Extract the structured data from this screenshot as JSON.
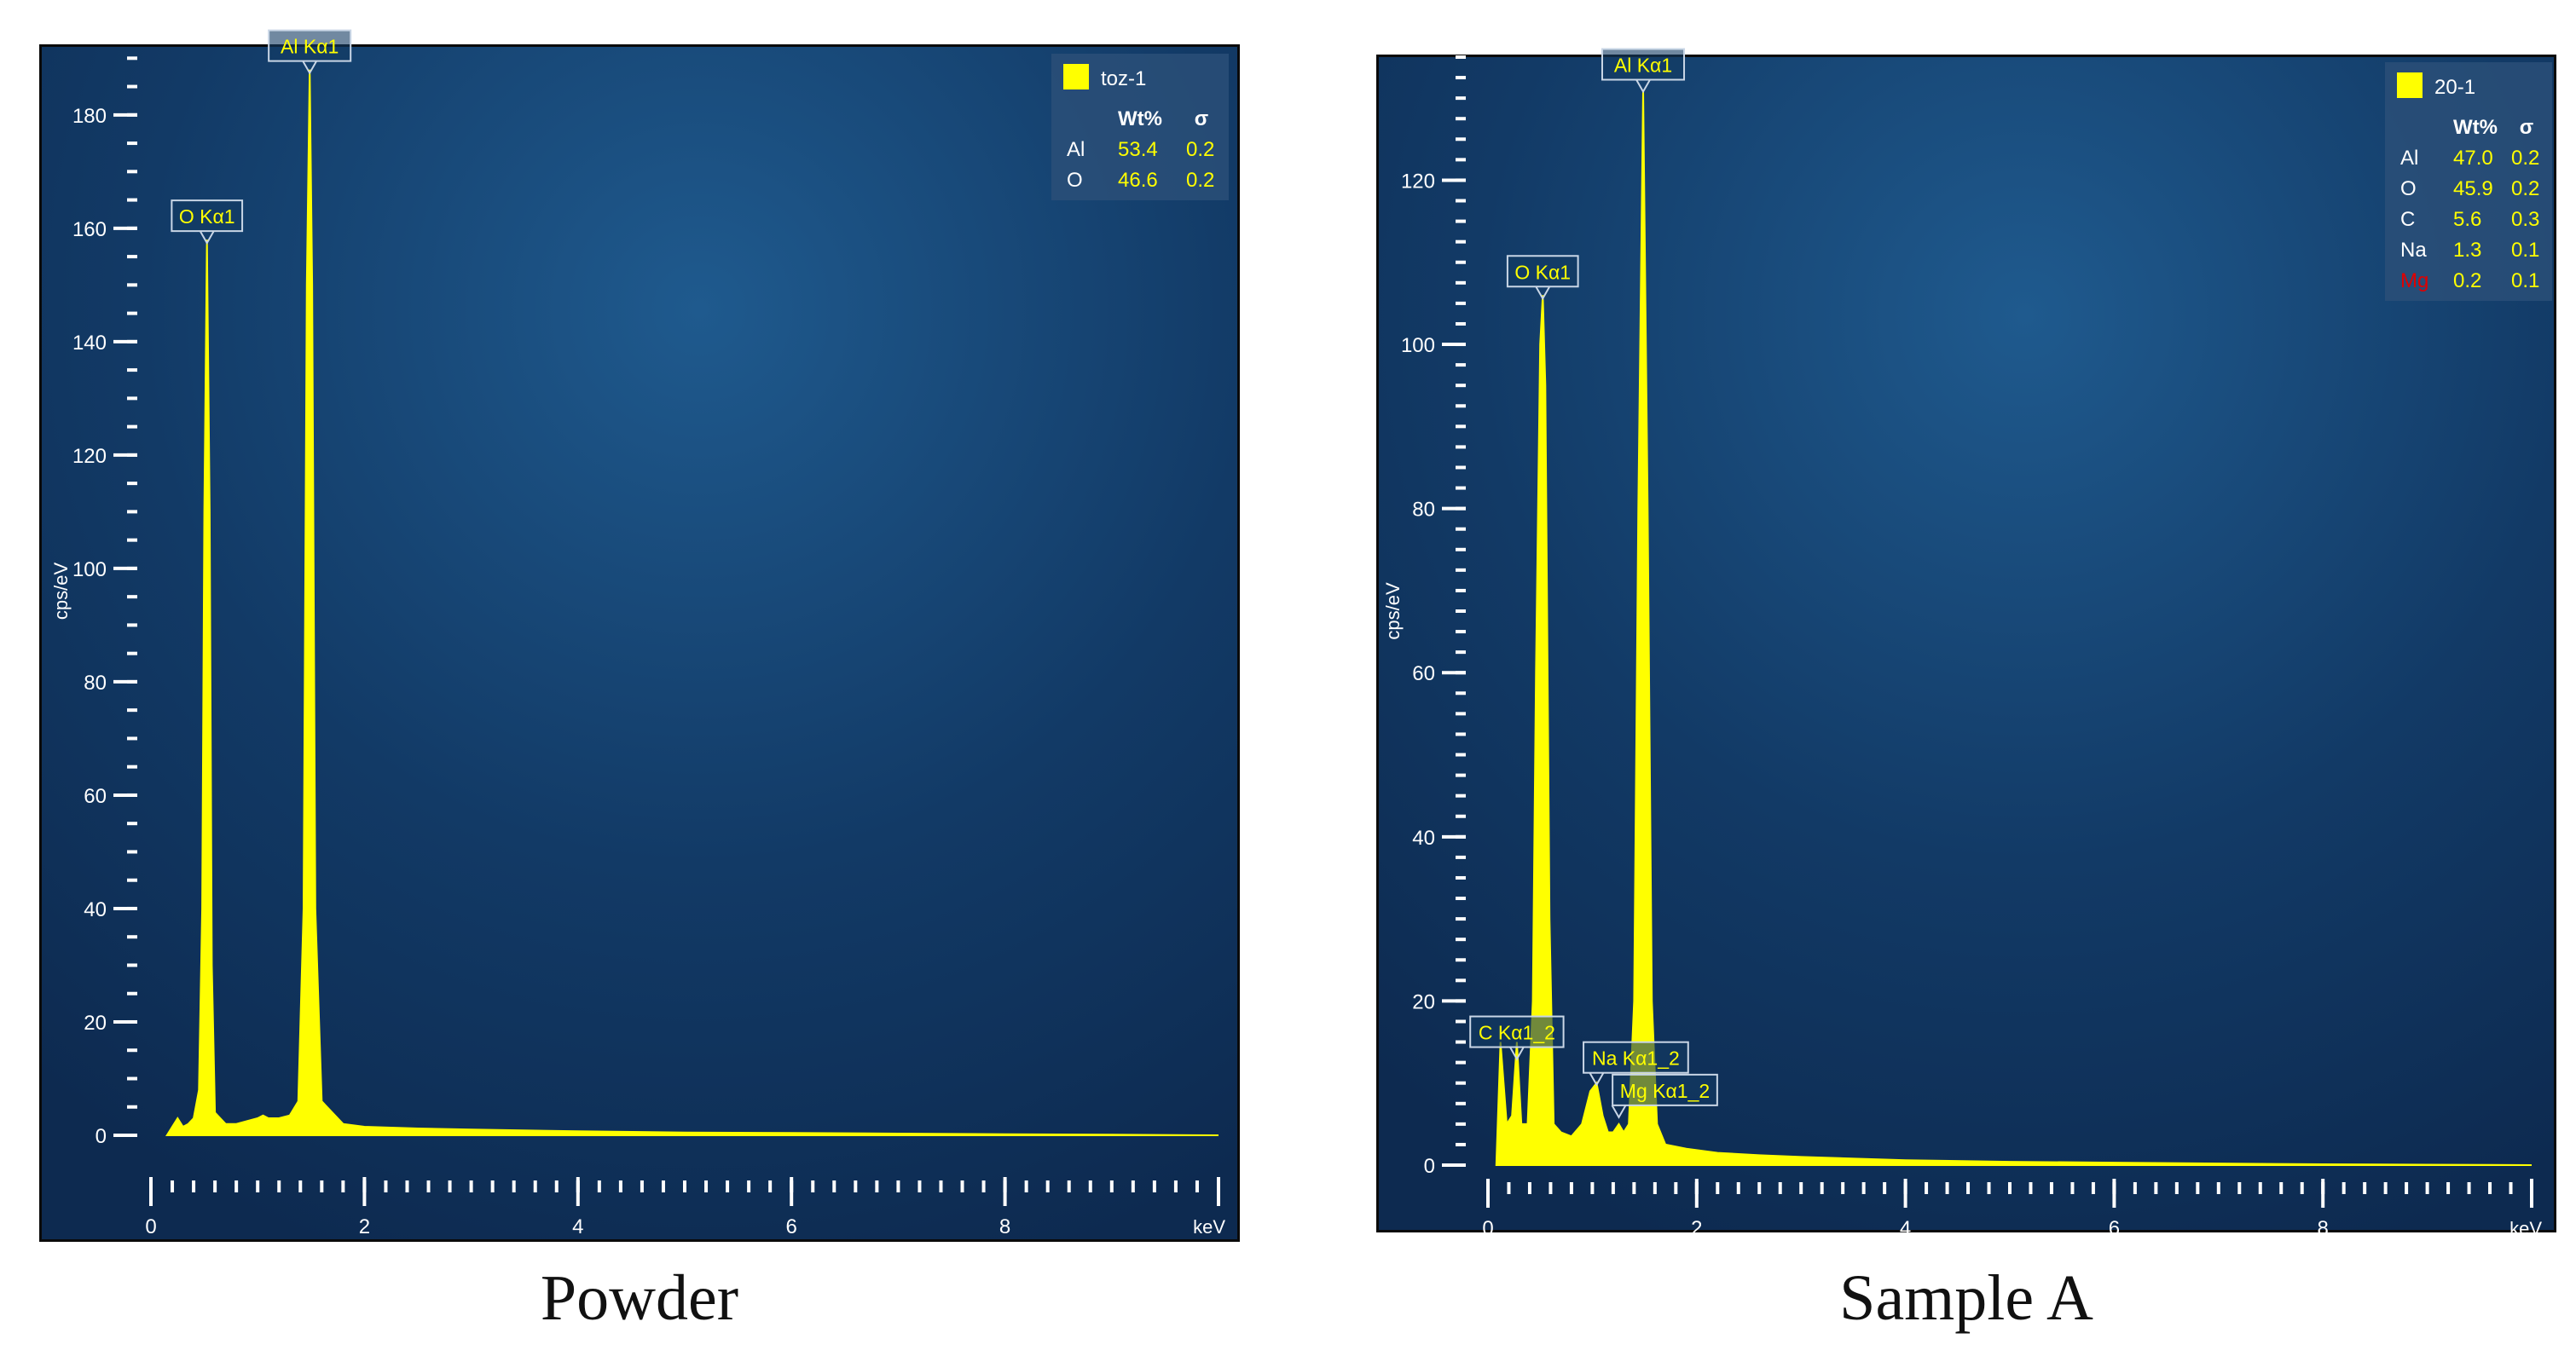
{
  "chart_data": [
    {
      "type": "area",
      "caption": "Powder",
      "ylabel": "cps/eV",
      "xunit": "keV",
      "xlim": [
        0,
        10
      ],
      "ylim": [
        0,
        192
      ],
      "yticks": [
        0,
        20,
        40,
        60,
        80,
        100,
        120,
        140,
        160,
        180
      ],
      "xticks": [
        0,
        2,
        4,
        6,
        8
      ],
      "spectrum_color": "#ffff00",
      "background_color": "#123a66",
      "peaks": [
        {
          "label": "O Kα1",
          "x": 0.525,
          "y": 158
        },
        {
          "label": "Al Kα1",
          "x": 1.487,
          "y": 188
        }
      ],
      "spectrum": {
        "x": [
          0.15,
          0.2,
          0.25,
          0.3,
          0.35,
          0.4,
          0.45,
          0.48,
          0.5,
          0.525,
          0.55,
          0.57,
          0.6,
          0.7,
          0.8,
          0.9,
          1.0,
          1.05,
          1.1,
          1.2,
          1.3,
          1.38,
          1.43,
          1.46,
          1.487,
          1.51,
          1.54,
          1.6,
          1.8,
          2.0,
          2.5,
          3.0,
          4.0,
          5.0,
          6.0,
          7.0,
          8.0,
          9.0,
          10.0
        ],
        "y": [
          0,
          1.5,
          3,
          1.5,
          2,
          3,
          8,
          40,
          110,
          158,
          110,
          30,
          4,
          2,
          2,
          2.5,
          3,
          3.5,
          3,
          3,
          3.5,
          6,
          40,
          150,
          188,
          150,
          40,
          6,
          2,
          1.5,
          1.2,
          1,
          0.7,
          0.5,
          0.4,
          0.3,
          0.2,
          0.1,
          0
        ]
      },
      "legend": {
        "sample": "toz-1",
        "headers": [
          "Wt%",
          "σ"
        ],
        "rows": [
          {
            "element": "Al",
            "wt": "53.4",
            "sigma": "0.2"
          },
          {
            "element": "O",
            "wt": "46.6",
            "sigma": "0.2"
          }
        ]
      }
    },
    {
      "type": "area",
      "caption": "Sample A",
      "ylabel": "cps/eV",
      "xunit": "keV",
      "xlim": [
        0,
        10
      ],
      "ylim": [
        0,
        135
      ],
      "yticks": [
        0,
        20,
        40,
        60,
        80,
        100,
        120
      ],
      "xticks": [
        0,
        2,
        4,
        6,
        8
      ],
      "spectrum_color": "#ffff00",
      "background_color": "#123a66",
      "peaks": [
        {
          "label": "C Kα1_2",
          "x": 0.277,
          "y": 15
        },
        {
          "label": "O Kα1",
          "x": 0.525,
          "y": 106
        },
        {
          "label": "Na Kα1_2",
          "x": 1.041,
          "y": 10
        },
        {
          "label": "Mg Kα1_2",
          "x": 1.254,
          "y": 5
        },
        {
          "label": "Al Kα1",
          "x": 1.487,
          "y": 131
        }
      ],
      "spectrum": {
        "x": [
          0.08,
          0.12,
          0.18,
          0.23,
          0.277,
          0.32,
          0.38,
          0.43,
          0.46,
          0.5,
          0.525,
          0.55,
          0.59,
          0.63,
          0.7,
          0.8,
          0.9,
          0.98,
          1.041,
          1.1,
          1.15,
          1.2,
          1.254,
          1.3,
          1.35,
          1.4,
          1.44,
          1.487,
          1.53,
          1.57,
          1.62,
          1.7,
          1.9,
          2.2,
          2.6,
          3.0,
          4.0,
          5.0,
          6.0,
          7.0,
          8.0,
          9.0,
          10.0
        ],
        "y": [
          0,
          15,
          5,
          6,
          15,
          5,
          5,
          20,
          60,
          100,
          106,
          95,
          30,
          5,
          4,
          3.5,
          5,
          9,
          10,
          6,
          4,
          4,
          5,
          4,
          5,
          20,
          80,
          131,
          80,
          20,
          5,
          2.5,
          2,
          1.5,
          1.2,
          1,
          0.6,
          0.4,
          0.3,
          0.2,
          0.1,
          0.05,
          0
        ]
      },
      "legend": {
        "sample": "20-1",
        "headers": [
          "Wt%",
          "σ"
        ],
        "rows": [
          {
            "element": "Al",
            "wt": "47.0",
            "sigma": "0.2"
          },
          {
            "element": "O",
            "wt": "45.9",
            "sigma": "0.2"
          },
          {
            "element": "C",
            "wt": "5.6",
            "sigma": "0.3"
          },
          {
            "element": "Na",
            "wt": "1.3",
            "sigma": "0.1"
          },
          {
            "element": "Mg",
            "wt": "0.2",
            "sigma": "0.1",
            "element_color": "#e00000"
          }
        ]
      }
    }
  ]
}
